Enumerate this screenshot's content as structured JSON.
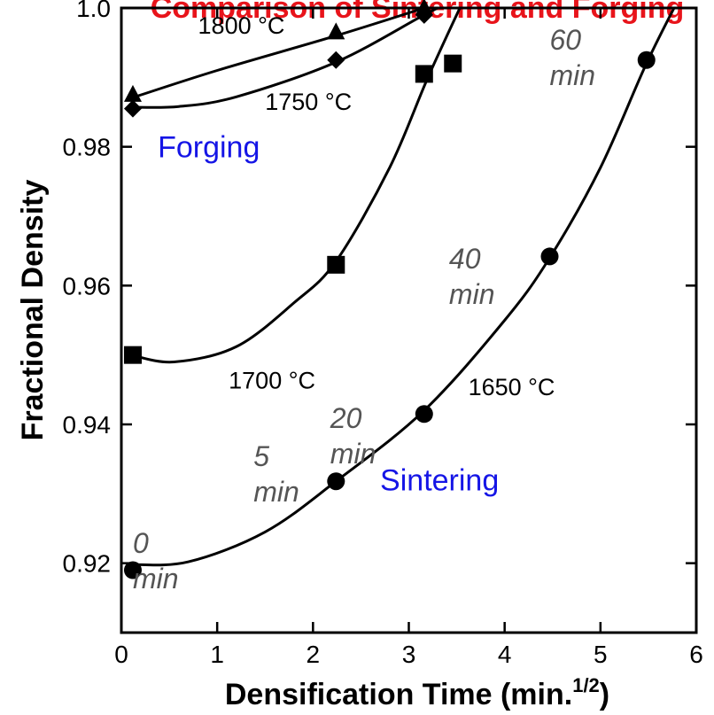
{
  "colors": {
    "axis": "#000000",
    "series": "#000000",
    "region_label": "#1515e6",
    "title": "#e8141b",
    "time_label": "#555555"
  },
  "chart_data": {
    "type": "scatter",
    "title": "Comparison of Sintering and Forging",
    "xlabel": "Densification Time (min.",
    "xlabel_sup": "1/2",
    "xlabel_close": ")",
    "ylabel": "Fractional Density",
    "xlim": [
      0,
      6
    ],
    "ylim": [
      0.91,
      1.0
    ],
    "grid": false,
    "x_ticks": [
      0,
      1,
      2,
      3,
      4,
      5,
      6
    ],
    "x_tick_labels": [
      "0",
      "1",
      "2",
      "3",
      "4",
      "5",
      "6"
    ],
    "y_ticks": [
      0.92,
      0.94,
      0.96,
      0.98,
      1.0
    ],
    "y_tick_labels": [
      "0.92",
      "0.94",
      "0.96",
      "0.98",
      "1.0"
    ],
    "series": [
      {
        "name": "1800 °C",
        "marker": "triangle",
        "points": [
          {
            "x": 0.12,
            "y": 0.9875
          },
          {
            "x": 2.24,
            "y": 0.9965
          },
          {
            "x": 3.16,
            "y": 1.0
          }
        ],
        "curve": [
          {
            "x": 0.1,
            "y": 0.987
          },
          {
            "x": 1.0,
            "y": 0.991
          },
          {
            "x": 2.24,
            "y": 0.996
          },
          {
            "x": 3.16,
            "y": 1.0
          },
          {
            "x": 3.5,
            "y": 1.0016
          }
        ]
      },
      {
        "name": "1750 °C",
        "marker": "diamond",
        "points": [
          {
            "x": 0.12,
            "y": 0.9855
          },
          {
            "x": 2.24,
            "y": 0.9925
          },
          {
            "x": 3.16,
            "y": 0.999
          }
        ],
        "curve": [
          {
            "x": 0.1,
            "y": 0.9857
          },
          {
            "x": 0.6,
            "y": 0.9858
          },
          {
            "x": 1.2,
            "y": 0.9872
          },
          {
            "x": 2.24,
            "y": 0.9922
          },
          {
            "x": 3.16,
            "y": 0.999
          },
          {
            "x": 3.55,
            "y": 1.0017
          }
        ]
      },
      {
        "name": "1700 °C",
        "marker": "square",
        "points": [
          {
            "x": 0.12,
            "y": 0.95
          },
          {
            "x": 2.24,
            "y": 0.963
          },
          {
            "x": 3.16,
            "y": 0.9905
          },
          {
            "x": 3.46,
            "y": 0.992
          }
        ],
        "curve": [
          {
            "x": 0.1,
            "y": 0.95
          },
          {
            "x": 0.55,
            "y": 0.949
          },
          {
            "x": 1.2,
            "y": 0.9512
          },
          {
            "x": 1.8,
            "y": 0.9575
          },
          {
            "x": 2.24,
            "y": 0.9635
          },
          {
            "x": 2.8,
            "y": 0.977
          },
          {
            "x": 3.2,
            "y": 0.99
          },
          {
            "x": 3.6,
            "y": 1.002
          }
        ]
      },
      {
        "name": "1650 °C",
        "marker": "circle",
        "points": [
          {
            "x": 0.12,
            "y": 0.919
          },
          {
            "x": 2.24,
            "y": 0.9318
          },
          {
            "x": 3.16,
            "y": 0.9415
          },
          {
            "x": 4.47,
            "y": 0.9642
          },
          {
            "x": 5.48,
            "y": 0.9925
          }
        ],
        "curve": [
          {
            "x": 0.1,
            "y": 0.9198
          },
          {
            "x": 0.7,
            "y": 0.9202
          },
          {
            "x": 1.5,
            "y": 0.9245
          },
          {
            "x": 2.24,
            "y": 0.9318
          },
          {
            "x": 3.16,
            "y": 0.942
          },
          {
            "x": 4.0,
            "y": 0.955
          },
          {
            "x": 4.47,
            "y": 0.964
          },
          {
            "x": 5.0,
            "y": 0.977
          },
          {
            "x": 5.48,
            "y": 0.992
          },
          {
            "x": 5.85,
            "y": 1.0022
          }
        ]
      }
    ],
    "temperature_labels": [
      {
        "text": "1800 °C",
        "x": 0.8,
        "y": 0.9963
      },
      {
        "text": "1750 °C",
        "x": 1.5,
        "y": 0.9853
      },
      {
        "text": "1700 °C",
        "x": 1.12,
        "y": 0.9452
      },
      {
        "text": "1650 °C",
        "x": 3.62,
        "y": 0.9442
      }
    ],
    "region_labels": [
      {
        "text": "Forging",
        "x": 0.38,
        "y": 0.9785
      },
      {
        "text": "Sintering",
        "x": 2.7,
        "y": 0.9305
      }
    ],
    "time_labels": [
      {
        "line1": "0",
        "line2": "min",
        "x": 0.12,
        "y": 0.9215
      },
      {
        "line1": "5",
        "line2": "min",
        "x": 1.38,
        "y": 0.934
      },
      {
        "line1": "20",
        "line2": "min",
        "x": 2.18,
        "y": 0.9395
      },
      {
        "line1": "40",
        "line2": "min",
        "x": 3.42,
        "y": 0.9625
      },
      {
        "line1": "60",
        "line2": "min",
        "x": 4.47,
        "y": 0.994
      }
    ]
  }
}
